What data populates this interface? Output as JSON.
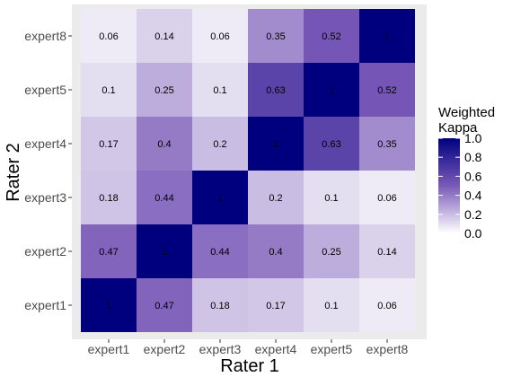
{
  "chart_data": {
    "type": "heatmap",
    "title": "",
    "xlabel": "Rater 1",
    "ylabel": "Rater 2",
    "x_categories": [
      "expert1",
      "expert2",
      "expert3",
      "expert4",
      "expert5",
      "expert8"
    ],
    "y_categories": [
      "expert1",
      "expert2",
      "expert3",
      "expert4",
      "expert5",
      "expert8"
    ],
    "values": [
      [
        1,
        0.47,
        0.18,
        0.17,
        0.1,
        0.06
      ],
      [
        0.47,
        1,
        0.44,
        0.4,
        0.25,
        0.14
      ],
      [
        0.18,
        0.44,
        1,
        0.2,
        0.1,
        0.06
      ],
      [
        0.17,
        0.4,
        0.2,
        1,
        0.63,
        0.35
      ],
      [
        0.1,
        0.25,
        0.1,
        0.63,
        1,
        0.52
      ],
      [
        0.06,
        0.14,
        0.06,
        0.35,
        0.52,
        1
      ]
    ],
    "value_labels": [
      [
        "1",
        "0.47",
        "0.18",
        "0.17",
        "0.1",
        "0.06"
      ],
      [
        "0.47",
        "1",
        "0.44",
        "0.4",
        "0.25",
        "0.14"
      ],
      [
        "0.18",
        "0.44",
        "1",
        "0.2",
        "0.1",
        "0.06"
      ],
      [
        "0.17",
        "0.4",
        "0.2",
        "1",
        "0.63",
        "0.35"
      ],
      [
        "0.1",
        "0.25",
        "0.1",
        "0.63",
        "1",
        "0.52"
      ],
      [
        "0.06",
        "0.14",
        "0.06",
        "0.35",
        "0.52",
        "1"
      ]
    ],
    "legend": {
      "title_lines": [
        "Weighted",
        "Kappa"
      ],
      "ticks": [
        1.0,
        0.8,
        0.6,
        0.4,
        0.2,
        0.0
      ],
      "tick_labels": [
        "1.0",
        "0.8",
        "0.6",
        "0.4",
        "0.2",
        "0.0"
      ],
      "range": [
        0,
        1
      ],
      "placement": "right"
    },
    "colors": {
      "low": "#ffffff",
      "mid": "#7a5ab8",
      "high": "#00007f",
      "panel_background": "#ebebeb",
      "axis_text": "#4d4d4d",
      "title_text": "#000000"
    },
    "grid": false
  }
}
